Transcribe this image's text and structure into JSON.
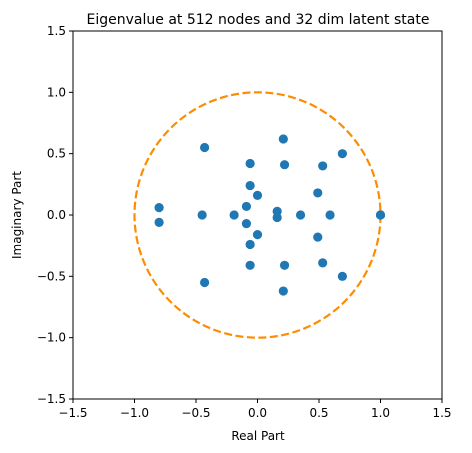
{
  "chart_data": {
    "type": "scatter",
    "title": "Eigenvalue at 512 nodes and 32 dim latent state",
    "xlabel": "Real Part",
    "ylabel": "Imaginary Part",
    "xlim": [
      -1.5,
      1.5
    ],
    "ylim": [
      -1.5,
      1.5
    ],
    "xticks": [
      -1.5,
      -1.0,
      -0.5,
      0.0,
      0.5,
      1.0,
      1.5
    ],
    "yticks": [
      -1.5,
      -1.0,
      -0.5,
      0.0,
      0.5,
      1.0,
      1.5
    ],
    "xtick_labels": [
      "−1.5",
      "−1.0",
      "−0.5",
      "0.0",
      "0.5",
      "1.0",
      "1.5"
    ],
    "ytick_labels": [
      "−1.5",
      "−1.0",
      "−0.5",
      "0.0",
      "0.5",
      "1.0",
      "1.5"
    ],
    "grid": false,
    "unit_circle": {
      "radius": 1.0,
      "color": "#ff8c00",
      "style": "dashed"
    },
    "points_color": "#1f77b4",
    "points": [
      {
        "x": 1.0,
        "y": 0.0
      },
      {
        "x": 1.0,
        "y": 0.0
      },
      {
        "x": 0.69,
        "y": 0.5
      },
      {
        "x": 0.69,
        "y": -0.5
      },
      {
        "x": 0.53,
        "y": 0.4
      },
      {
        "x": 0.53,
        "y": -0.39
      },
      {
        "x": 0.59,
        "y": 0.0
      },
      {
        "x": 0.49,
        "y": 0.18
      },
      {
        "x": 0.49,
        "y": -0.18
      },
      {
        "x": 0.35,
        "y": 0.0
      },
      {
        "x": 0.21,
        "y": 0.62
      },
      {
        "x": 0.21,
        "y": -0.62
      },
      {
        "x": 0.22,
        "y": 0.41
      },
      {
        "x": 0.22,
        "y": -0.41
      },
      {
        "x": 0.16,
        "y": 0.03
      },
      {
        "x": 0.16,
        "y": -0.02
      },
      {
        "x": 0.0,
        "y": 0.16
      },
      {
        "x": 0.0,
        "y": -0.16
      },
      {
        "x": -0.06,
        "y": 0.42
      },
      {
        "x": -0.06,
        "y": -0.41
      },
      {
        "x": -0.06,
        "y": 0.24
      },
      {
        "x": -0.06,
        "y": -0.24
      },
      {
        "x": -0.09,
        "y": 0.07
      },
      {
        "x": -0.09,
        "y": -0.07
      },
      {
        "x": -0.19,
        "y": 0.0
      },
      {
        "x": -0.43,
        "y": 0.55
      },
      {
        "x": -0.43,
        "y": -0.55
      },
      {
        "x": -0.45,
        "y": 0.0
      },
      {
        "x": -0.8,
        "y": 0.06
      },
      {
        "x": -0.8,
        "y": -0.06
      }
    ]
  }
}
